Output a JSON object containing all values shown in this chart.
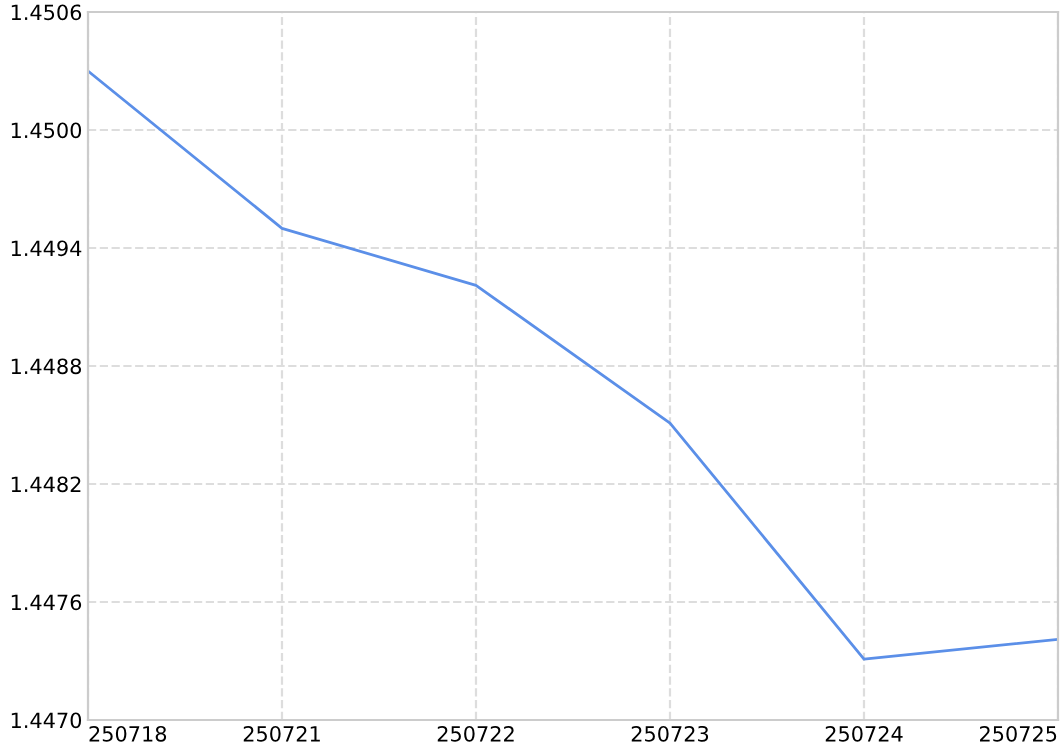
{
  "chart_data": {
    "type": "line",
    "categories": [
      "250718",
      "250721",
      "250722",
      "250723",
      "250724",
      "250725"
    ],
    "series": [
      {
        "color": "#5b8fe8",
        "values": [
          1.4503,
          1.4495,
          1.44921,
          1.44851,
          1.44731,
          1.44741
        ]
      }
    ],
    "ylim": [
      1.447,
      1.4506
    ],
    "yticks": [
      {
        "value": 1.447,
        "label": "1.4470"
      },
      {
        "value": 1.4476,
        "label": "1.4476"
      },
      {
        "value": 1.4482,
        "label": "1.4482"
      },
      {
        "value": 1.4488,
        "label": "1.4488"
      },
      {
        "value": 1.4494,
        "label": "1.4494"
      },
      {
        "value": 1.45,
        "label": "1.4500"
      },
      {
        "value": 1.4506,
        "label": "1.4506"
      }
    ],
    "grid": true,
    "marker": "none",
    "line_style": "solid"
  }
}
